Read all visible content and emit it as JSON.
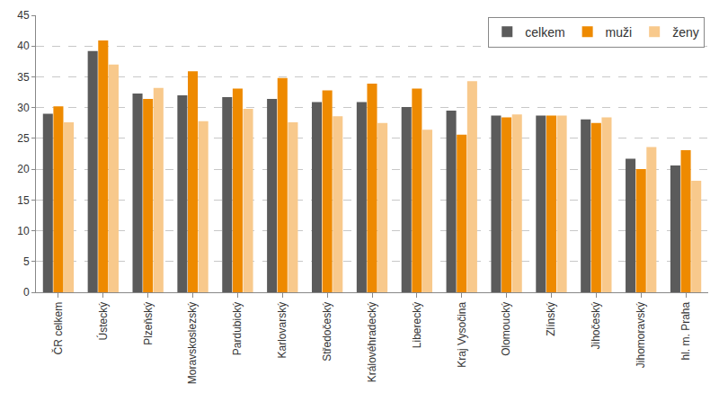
{
  "chart_data": {
    "type": "bar",
    "categories": [
      "ČR celkem",
      "Ústecký",
      "Plzeňský",
      "Moravskoslezský",
      "Pardubický",
      "Karlovarský",
      "Středočeský",
      "Královéhradecký",
      "Liberecký",
      "Kraj Vysočina",
      "Olomoucký",
      "Zlínský",
      "Jihočeský",
      "Jihomoravský",
      "hl. m. Praha"
    ],
    "series": [
      {
        "name": "celkem",
        "color": "#5b5b5b",
        "values": [
          29.0,
          39.2,
          32.3,
          32.0,
          31.7,
          31.4,
          30.9,
          30.9,
          30.1,
          29.5,
          28.7,
          28.7,
          28.1,
          21.7,
          20.6
        ]
      },
      {
        "name": "muži",
        "color": "#ee8a00",
        "values": [
          30.2,
          40.9,
          31.4,
          35.9,
          33.1,
          34.8,
          32.8,
          33.9,
          33.1,
          25.6,
          28.4,
          28.7,
          27.5,
          20.0,
          23.1
        ]
      },
      {
        "name": "ženy",
        "color": "#f8c98c",
        "values": [
          27.6,
          37.0,
          33.2,
          27.8,
          29.8,
          27.6,
          28.6,
          27.5,
          26.4,
          34.3,
          28.9,
          28.7,
          28.4,
          23.6,
          18.1
        ]
      }
    ],
    "ylim": [
      0,
      45
    ],
    "yticks": [
      0,
      5,
      10,
      15,
      20,
      25,
      30,
      35,
      40,
      45
    ],
    "grid": true,
    "legend": "top right"
  }
}
